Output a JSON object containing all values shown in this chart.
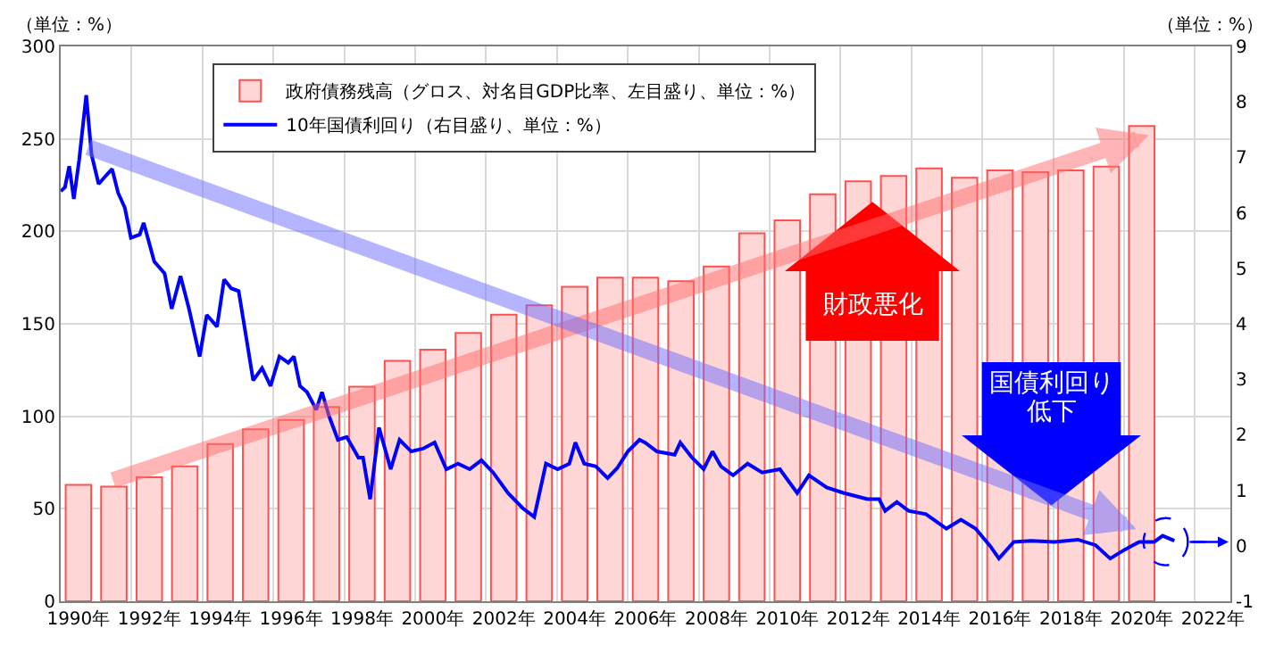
{
  "chart_data": {
    "type": "bar",
    "ylabel": "（単位：%）",
    "y2label": "（単位：%）",
    "annotations": [
      "財政悪化",
      "国債利回り",
      "低下"
    ],
    "x": [
      1990,
      1991,
      1992,
      1993,
      1994,
      1995,
      1996,
      1997,
      1998,
      1999,
      2000,
      2001,
      2002,
      2003,
      2004,
      2005,
      2006,
      2007,
      2008,
      2009,
      2010,
      2011,
      2012,
      2013,
      2014,
      2015,
      2016,
      2017,
      2018,
      2019,
      2020
    ],
    "series": [
      {
        "name": "政府債務残高（グロス、対名目GDP比率、左目盛り、単位：%）",
        "color": "#ffd6d6",
        "values": [
          63,
          62,
          67,
          73,
          85,
          93,
          98,
          105,
          116,
          130,
          136,
          145,
          155,
          160,
          170,
          175,
          175,
          173,
          181,
          199,
          206,
          220,
          227,
          230,
          234,
          229,
          233,
          232,
          233,
          235,
          257
        ]
      },
      {
        "name": "10年国債利回り（右目盛り、単位：%）",
        "type": "line",
        "axis": "y2",
        "color": "#0000ff",
        "x": [
          1989.5,
          1989.62,
          1989.74,
          1989.87,
          1990.02,
          1990.22,
          1990.37,
          1990.57,
          1990.79,
          1990.95,
          1991.12,
          1991.31,
          1991.48,
          1991.73,
          1991.84,
          1992.14,
          1992.43,
          1992.63,
          1992.88,
          1993.12,
          1993.42,
          1993.62,
          1993.91,
          1994.11,
          1994.31,
          1994.52,
          1994.74,
          1994.93,
          1995.18,
          1995.42,
          1995.67,
          1995.92,
          1996.08,
          1996.25,
          1996.45,
          1996.71,
          1996.87,
          1997.07,
          1997.32,
          1997.57,
          1997.9,
          1998.03,
          1998.23,
          1998.48,
          1998.81,
          1999.06,
          1999.39,
          1999.72,
          2000.05,
          2000.38,
          2000.71,
          2001.04,
          2001.37,
          2001.7,
          2002.12,
          2002.53,
          2002.86,
          2003.19,
          2003.52,
          2003.85,
          2004.02,
          2004.27,
          2004.6,
          2004.93,
          2005.2,
          2005.5,
          2005.83,
          2005.99,
          2006.32,
          2006.82,
          2006.98,
          2007.31,
          2007.64,
          2007.89,
          2008.13,
          2008.47,
          2008.88,
          2009.29,
          2009.79,
          2010.28,
          2010.61,
          2011.11,
          2011.6,
          2012.26,
          2012.59,
          2012.76,
          2013.09,
          2013.42,
          2013.91,
          2014.49,
          2014.9,
          2015.31,
          2015.73,
          2015.97,
          2016.39,
          2016.88,
          2017.54,
          2018.2,
          2018.7,
          2019.11,
          2019.52,
          2019.93,
          2020.35,
          2020.59,
          2020.92
        ],
        "values": [
          6.39,
          6.46,
          6.84,
          6.25,
          6.95,
          8.12,
          7.05,
          6.52,
          6.68,
          6.79,
          6.36,
          6.09,
          5.55,
          5.61,
          5.82,
          5.12,
          4.91,
          4.27,
          4.86,
          4.27,
          3.41,
          4.16,
          3.95,
          4.8,
          4.64,
          4.59,
          3.73,
          2.98,
          3.2,
          2.88,
          3.41,
          3.3,
          3.41,
          2.88,
          2.77,
          2.45,
          2.77,
          2.34,
          1.91,
          1.96,
          1.59,
          1.59,
          0.84,
          2.13,
          1.38,
          1.91,
          1.7,
          1.75,
          1.86,
          1.38,
          1.48,
          1.38,
          1.54,
          1.32,
          0.95,
          0.68,
          0.52,
          1.48,
          1.38,
          1.48,
          1.86,
          1.48,
          1.43,
          1.22,
          1.4,
          1.7,
          1.91,
          1.86,
          1.7,
          1.64,
          1.86,
          1.59,
          1.38,
          1.7,
          1.43,
          1.27,
          1.48,
          1.32,
          1.38,
          0.95,
          1.27,
          1.05,
          0.95,
          0.84,
          0.84,
          0.63,
          0.79,
          0.63,
          0.57,
          0.31,
          0.47,
          0.31,
          -0.01,
          -0.23,
          0.07,
          0.09,
          0.07,
          0.11,
          0.01,
          -0.23,
          -0.07,
          0.07,
          0.07,
          0.18,
          0.09
        ]
      }
    ],
    "xlim": [
      1989.5,
      2022.5
    ],
    "xticks": [
      {
        "value": 1990,
        "label": "1990年"
      },
      {
        "value": 1992,
        "label": "1992年"
      },
      {
        "value": 1994,
        "label": "1994年"
      },
      {
        "value": 1996,
        "label": "1996年"
      },
      {
        "value": 1998,
        "label": "1998年"
      },
      {
        "value": 2000,
        "label": "2000年"
      },
      {
        "value": 2002,
        "label": "2002年"
      },
      {
        "value": 2004,
        "label": "2004年"
      },
      {
        "value": 2006,
        "label": "2006年"
      },
      {
        "value": 2008,
        "label": "2008年"
      },
      {
        "value": 2010,
        "label": "2010年"
      },
      {
        "value": 2012,
        "label": "2012年"
      },
      {
        "value": 2014,
        "label": "2014年"
      },
      {
        "value": 2016,
        "label": "2016年"
      },
      {
        "value": 2018,
        "label": "2018年"
      },
      {
        "value": 2020,
        "label": "2020年"
      },
      {
        "value": 2022,
        "label": "2022年"
      }
    ],
    "ylim": [
      0,
      300
    ],
    "yticks": [
      0,
      50,
      100,
      150,
      200,
      250,
      300
    ],
    "y2lim": [
      -1,
      9
    ],
    "y2ticks": [
      -1,
      0,
      1,
      2,
      3,
      4,
      5,
      6,
      7,
      8,
      9
    ],
    "grid": true,
    "legend": "top left"
  }
}
